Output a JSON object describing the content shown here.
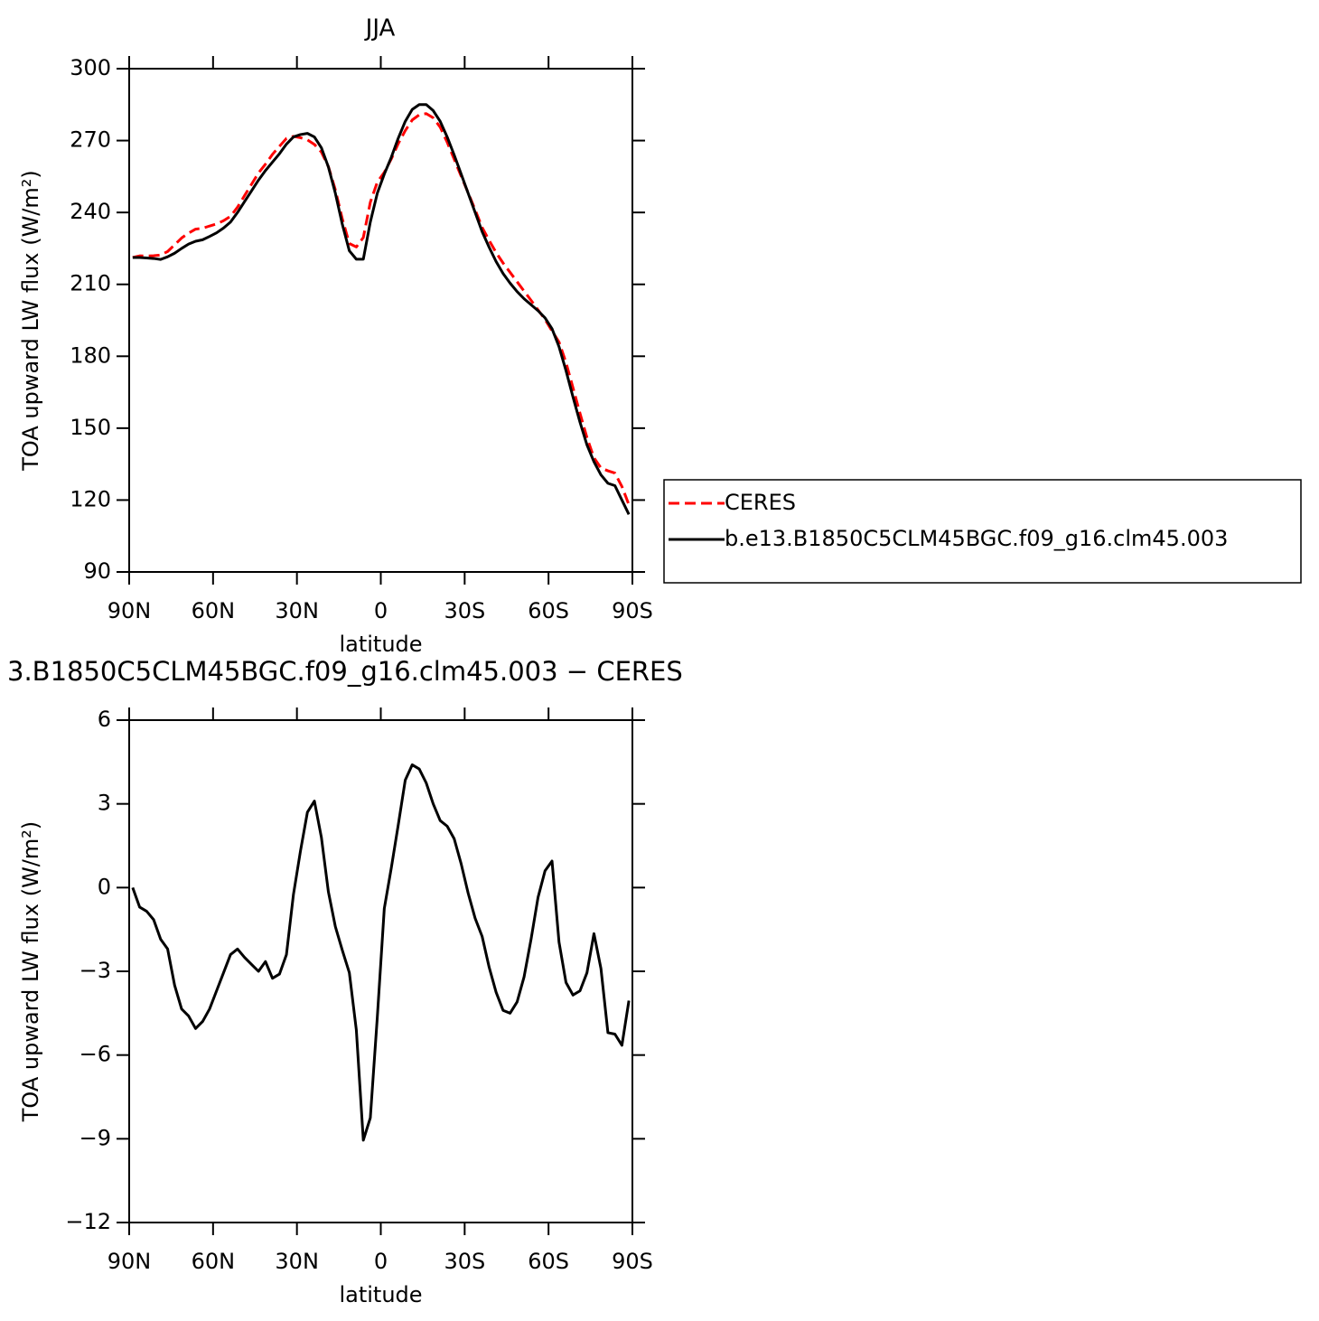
{
  "chart_data": [
    {
      "type": "line",
      "title": "JJA",
      "xlabel": "latitude",
      "ylabel": "TOA upward LW flux (W/m²)",
      "x": [
        88.75,
        86.25,
        83.75,
        81.25,
        78.75,
        76.25,
        73.75,
        71.25,
        68.75,
        66.25,
        63.75,
        61.25,
        58.75,
        56.25,
        53.75,
        51.25,
        48.75,
        46.25,
        43.75,
        41.25,
        38.75,
        36.25,
        33.75,
        31.25,
        28.75,
        26.25,
        23.75,
        21.25,
        18.75,
        16.25,
        13.75,
        11.25,
        8.75,
        6.25,
        3.75,
        1.25,
        -1.25,
        -3.75,
        -6.25,
        -8.75,
        -11.25,
        -13.75,
        -16.25,
        -18.75,
        -21.25,
        -23.75,
        -26.25,
        -28.75,
        -31.25,
        -33.75,
        -36.25,
        -38.75,
        -41.25,
        -43.75,
        -46.25,
        -48.75,
        -51.25,
        -53.75,
        -56.25,
        -58.75,
        -61.25,
        -63.75,
        -66.25,
        -68.75,
        -71.25,
        -73.75,
        -76.25,
        -78.75,
        -81.25,
        -83.75,
        -86.25,
        -88.75
      ],
      "xlim": [
        90,
        -90
      ],
      "xticks": [
        {
          "value": 90,
          "label": "90N"
        },
        {
          "value": 60,
          "label": "60N"
        },
        {
          "value": 30,
          "label": "30N"
        },
        0,
        {
          "value": -30,
          "label": "30S"
        },
        {
          "value": -60,
          "label": "60S"
        },
        {
          "value": -90,
          "label": "90S"
        }
      ],
      "ylim": [
        90,
        300
      ],
      "yticks": [
        90,
        120,
        150,
        180,
        210,
        240,
        270,
        300
      ],
      "legend": "outside right",
      "series": [
        {
          "name": "CERES",
          "color": "#ff0000",
          "linestyle": "dashed",
          "values": [
            221.2,
            221.9,
            221.85,
            221.95,
            222.25,
            223.7,
            226.5,
            229.35,
            231.4,
            233.05,
            233.4,
            234.35,
            235.2,
            236.55,
            238.4,
            242.2,
            247,
            251.75,
            256.5,
            260.15,
            264.25,
            267.6,
            270.9,
            271.75,
            271.2,
            270.3,
            268.4,
            265.2,
            259.15,
            249.4,
            237.25,
            227.05,
            225.6,
            229.55,
            244.25,
            252.65,
            256.75,
            262.3,
            268.75,
            274.15,
            278.6,
            280.75,
            281.25,
            279.5,
            275.6,
            269.3,
            262.25,
            255.15,
            248.2,
            241.1,
            233.75,
            228.35,
            223.25,
            218.9,
            215,
            211.1,
            207.2,
            203.35,
            199.35,
            195.4,
            190.55,
            185.95,
            177.4,
            166.85,
            156.2,
            146.05,
            137.65,
            133.4,
            132.2,
            131.25,
            125.65,
            118.05
          ]
        },
        {
          "name": "b.e13.B1850C5CLM45BGC.f09_g16.clm45.003",
          "color": "#000000",
          "linestyle": "solid",
          "values": [
            221.2,
            221.2,
            221,
            220.8,
            220.4,
            221.5,
            223,
            225,
            226.8,
            228,
            228.6,
            230,
            231.5,
            233.5,
            236,
            240,
            244.5,
            249,
            253.5,
            257.5,
            261,
            264.5,
            268.5,
            271.5,
            272.5,
            273,
            271.5,
            267,
            259,
            248,
            235,
            224,
            220.5,
            220.5,
            236,
            248,
            256,
            263,
            271,
            278,
            283,
            285,
            285,
            282.5,
            278,
            271.5,
            264,
            256,
            248,
            240,
            232,
            225.5,
            219.5,
            214.5,
            210.5,
            207,
            204,
            201.5,
            199,
            196,
            191.5,
            184,
            174,
            163,
            152.5,
            143,
            136,
            130.5,
            127,
            126,
            120,
            114
          ]
        }
      ]
    },
    {
      "type": "line",
      "title": "3.B1850C5CLM45BGC.f09_g16.clm45.003 − CERES",
      "xlabel": "latitude",
      "ylabel": "TOA upward LW flux (W/m²)",
      "x": [
        88.75,
        86.25,
        83.75,
        81.25,
        78.75,
        76.25,
        73.75,
        71.25,
        68.75,
        66.25,
        63.75,
        61.25,
        58.75,
        56.25,
        53.75,
        51.25,
        48.75,
        46.25,
        43.75,
        41.25,
        38.75,
        36.25,
        33.75,
        31.25,
        28.75,
        26.25,
        23.75,
        21.25,
        18.75,
        16.25,
        13.75,
        11.25,
        8.75,
        6.25,
        3.75,
        1.25,
        -1.25,
        -3.75,
        -6.25,
        -8.75,
        -11.25,
        -13.75,
        -16.25,
        -18.75,
        -21.25,
        -23.75,
        -26.25,
        -28.75,
        -31.25,
        -33.75,
        -36.25,
        -38.75,
        -41.25,
        -43.75,
        -46.25,
        -48.75,
        -51.25,
        -53.75,
        -56.25,
        -58.75,
        -61.25,
        -63.75,
        -66.25,
        -68.75,
        -71.25,
        -73.75,
        -76.25,
        -78.75,
        -81.25,
        -83.75,
        -86.25,
        -88.75
      ],
      "xlim": [
        90,
        -90
      ],
      "xticks": [
        {
          "value": 90,
          "label": "90N"
        },
        {
          "value": 60,
          "label": "60N"
        },
        {
          "value": 30,
          "label": "30N"
        },
        0,
        {
          "value": -30,
          "label": "30S"
        },
        {
          "value": -60,
          "label": "60S"
        },
        {
          "value": -90,
          "label": "90S"
        }
      ],
      "ylim": [
        -12,
        6
      ],
      "yticks": [
        {
          "value": -12,
          "label": "−12"
        },
        {
          "value": -9,
          "label": "−9"
        },
        {
          "value": -6,
          "label": "−6"
        },
        {
          "value": -3,
          "label": "−3"
        },
        0,
        3,
        6
      ],
      "series": [
        {
          "color": "#000000",
          "linestyle": "solid",
          "values": [
            0,
            -0.7,
            -0.85,
            -1.15,
            -1.85,
            -2.2,
            -3.5,
            -4.35,
            -4.6,
            -5.05,
            -4.8,
            -4.35,
            -3.7,
            -3.05,
            -2.4,
            -2.2,
            -2.5,
            -2.75,
            -3,
            -2.65,
            -3.25,
            -3.1,
            -2.4,
            -0.25,
            1.3,
            2.7,
            3.1,
            1.8,
            -0.15,
            -1.4,
            -2.25,
            -3.05,
            -5.1,
            -9.05,
            -8.25,
            -4.65,
            -0.75,
            0.7,
            2.25,
            3.85,
            4.4,
            4.25,
            3.75,
            3,
            2.4,
            2.2,
            1.75,
            0.85,
            -0.2,
            -1.1,
            -1.75,
            -2.85,
            -3.75,
            -4.4,
            -4.5,
            -4.1,
            -3.2,
            -1.85,
            -0.35,
            0.6,
            0.95,
            -1.95,
            -3.4,
            -3.85,
            -3.7,
            -3.05,
            -1.65,
            -2.9,
            -5.2,
            -5.25,
            -5.65,
            -4.05
          ]
        }
      ]
    }
  ]
}
